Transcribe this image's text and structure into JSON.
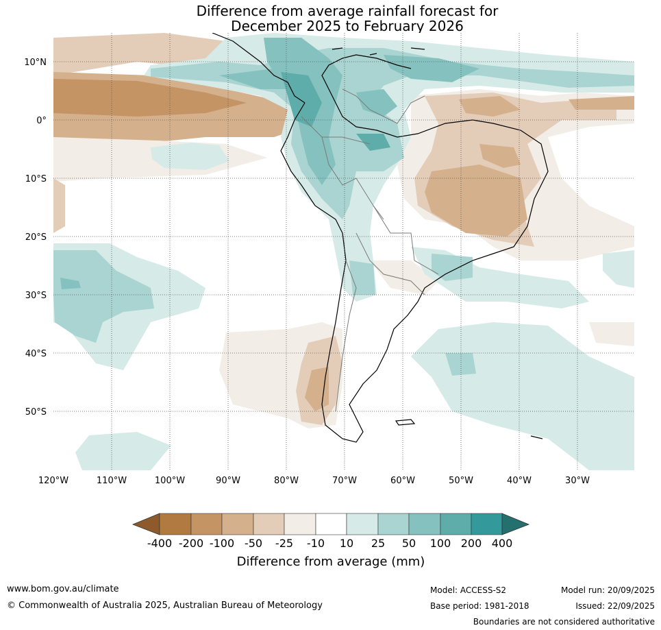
{
  "title": {
    "line1": "Difference from average rainfall forecast for",
    "line2": "December 2025 to February 2026"
  },
  "axes": {
    "lat_labels": [
      "10°N",
      "0°",
      "10°S",
      "20°S",
      "30°S",
      "40°S",
      "50°S"
    ],
    "lon_labels": [
      "120°W",
      "110°W",
      "100°W",
      "90°W",
      "80°W",
      "70°W",
      "60°W",
      "50°W",
      "40°W",
      "30°W"
    ]
  },
  "legend": {
    "title": "Difference from average (mm)",
    "tick_labels": [
      "-400",
      "-200",
      "-100",
      "-50",
      "-25",
      "-10",
      "10",
      "25",
      "50",
      "100",
      "200",
      "400"
    ],
    "colors": [
      "#8e5a2b",
      "#b07a40",
      "#c49465",
      "#d4b08d",
      "#e3cdb8",
      "#f2ede6",
      "#ffffff",
      "#d6ebe8",
      "#a9d4d1",
      "#85c1be",
      "#5fadaa",
      "#34999a",
      "#23706f"
    ]
  },
  "footer": {
    "url": "www.bom.gov.au/climate",
    "copyright": "© Commonwealth of Australia 2025, Australian Bureau of Meteorology",
    "model": "Model: ACCESS-S2",
    "base_period": "Base period: 1981-2018",
    "model_run": "Model run: 20/09/2025",
    "issued": "Issued: 22/09/2025",
    "disclaimer": "Boundaries are not considered authoritative"
  }
}
